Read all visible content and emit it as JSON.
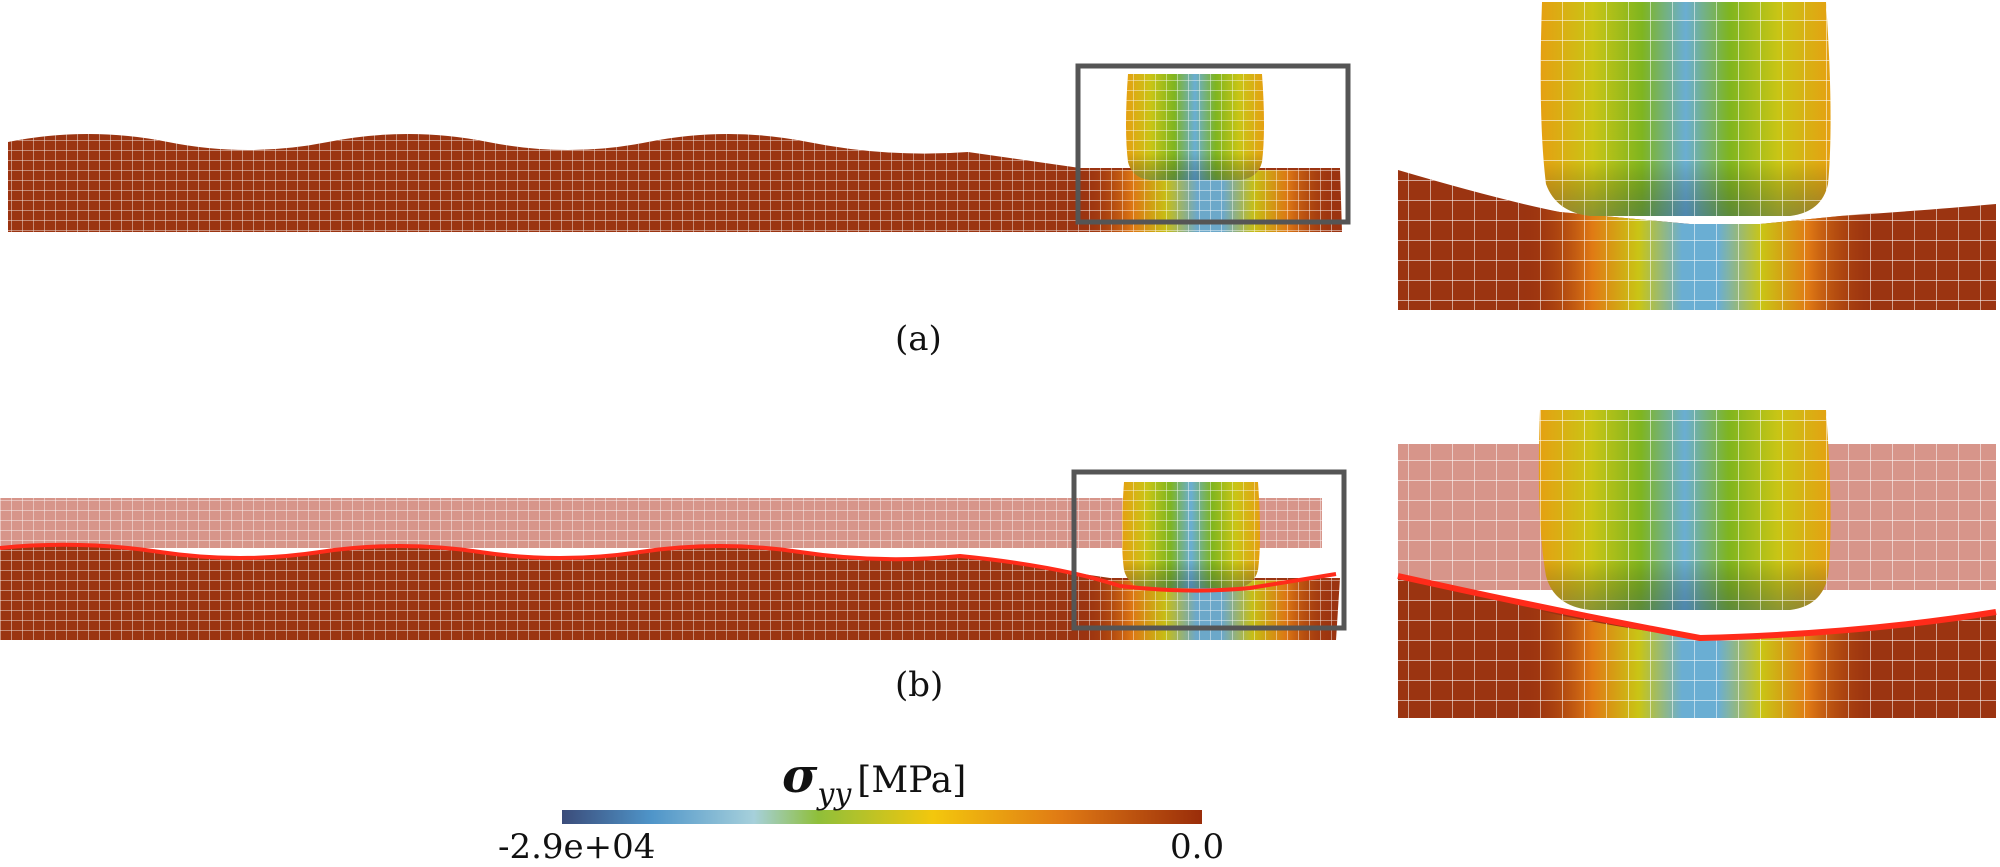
{
  "captions": {
    "a": "(a)",
    "b": "(b)"
  },
  "colorbar": {
    "symbol": "σ",
    "subscript": "yy",
    "unit": "[MPa]",
    "min_label": "-2.9e+04",
    "max_label": "0.0",
    "colors": [
      "#3b4c7a",
      "#3f6ea3",
      "#4f95c9",
      "#74b3d9",
      "#a6d0db",
      "#8fbf3a",
      "#7fb51f",
      "#c9c515",
      "#f3c70d",
      "#f0a21a",
      "#e07a14",
      "#b64210",
      "#9a2d0a"
    ]
  },
  "colors": {
    "substrate": "#9b3411",
    "mesh_line": "#ffffff",
    "ghost_layer": "#d7958a",
    "interface_curve": "#ff2b1a",
    "zoom_box": "#555555",
    "indenter_high": "#7fb51f",
    "indenter_low": "#6aaed3"
  },
  "panels": [
    {
      "id": "a",
      "label": "(a)",
      "interface_curve": false,
      "zoom_box": true
    },
    {
      "id": "b",
      "label": "(b)",
      "interface_curve": true,
      "zoom_box": true
    }
  ]
}
